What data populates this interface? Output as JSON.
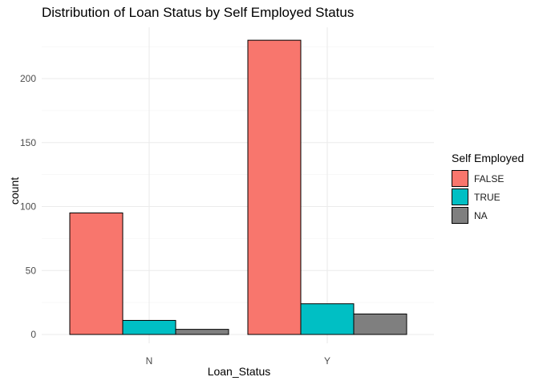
{
  "chart_data": {
    "type": "bar",
    "title": "Distribution of Loan Status by Self Employed Status",
    "xlabel": "Loan_Status",
    "ylabel": "count",
    "categories": [
      "N",
      "Y"
    ],
    "series": [
      {
        "name": "FALSE",
        "values": [
          95,
          230
        ],
        "color": "#F8766D"
      },
      {
        "name": "TRUE",
        "values": [
          11,
          24
        ],
        "color": "#00BFC4"
      },
      {
        "name": "NA",
        "values": [
          4,
          16
        ],
        "color": "#7F7F7F"
      }
    ],
    "ylim": [
      0,
      242
    ],
    "yticks": [
      0,
      50,
      100,
      150,
      200
    ],
    "legend_title": "Self Employed",
    "legend_position": "right",
    "grid": true
  }
}
